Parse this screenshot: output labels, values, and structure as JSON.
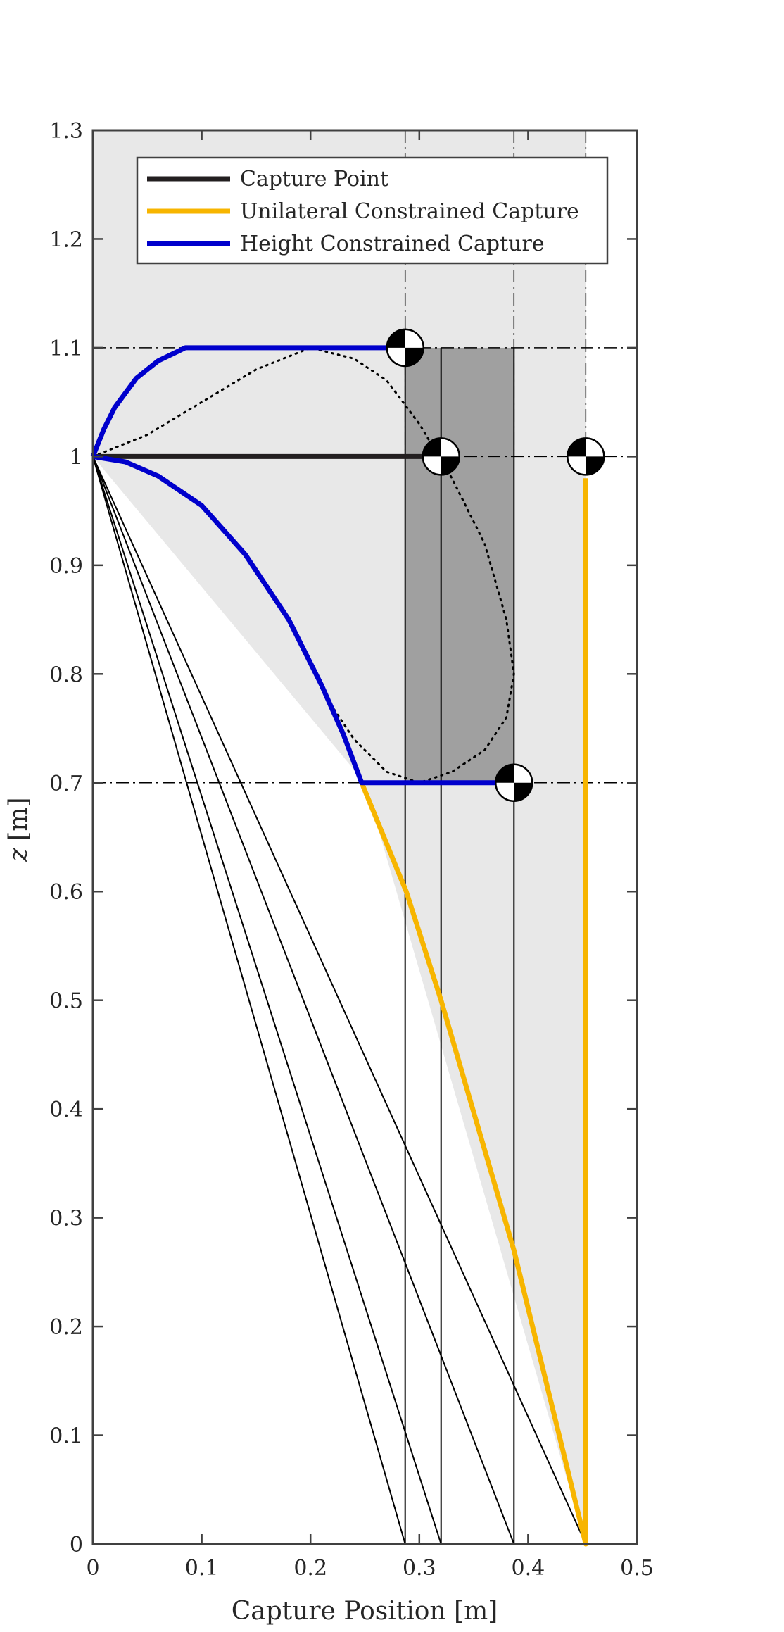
{
  "chart_data": {
    "type": "line",
    "xlabel": "Capture Position [m]",
    "ylabel_var": "z",
    "ylabel_unit": "[m]",
    "xlim": [
      0,
      0.5
    ],
    "ylim": [
      0,
      1.3
    ],
    "x_ticks": [
      "0",
      "0.1",
      "0.2",
      "0.3",
      "0.4",
      "0.5"
    ],
    "y_ticks": [
      "0",
      "0.1",
      "0.2",
      "0.3",
      "0.4",
      "0.5",
      "0.6",
      "0.7",
      "0.8",
      "0.9",
      "1",
      "1.1",
      "1.2",
      "1.3"
    ],
    "legend_position": "top",
    "colors": {
      "capture_point": "#231f20",
      "unilateral": "#f7b500",
      "height": "#0000cc",
      "light_region": "#e8e8e8",
      "dark_region": "#a0a0a0",
      "axes": "#404040"
    },
    "series": [
      {
        "name": "Capture Point",
        "x": [
          0,
          0.32
        ],
        "y": [
          1.0,
          1.0
        ]
      },
      {
        "name": "Unilateral Constrained Capture",
        "x": [
          0.247,
          0.288,
          0.32,
          0.387,
          0.453,
          0.453
        ],
        "y": [
          0.7,
          0.6,
          0.5,
          0.27,
          0.0,
          0.98
        ]
      },
      {
        "name": "Height Constrained Capture",
        "segments": [
          {
            "x": [
              0,
              0.01,
              0.02,
              0.04,
              0.06,
              0.085,
              0.287
            ],
            "y": [
              1.0,
              1.025,
              1.045,
              1.072,
              1.088,
              1.1,
              1.1
            ]
          },
          {
            "x": [
              0,
              0.03,
              0.06,
              0.1,
              0.14,
              0.18,
              0.21,
              0.23,
              0.247,
              0.387
            ],
            "y": [
              1.0,
              0.995,
              0.982,
              0.955,
              0.91,
              0.85,
              0.79,
              0.745,
              0.7,
              0.7
            ]
          }
        ]
      }
    ],
    "dotted_curve": {
      "x": [
        0,
        0.05,
        0.1,
        0.15,
        0.2,
        0.24,
        0.27,
        0.3,
        0.33,
        0.36,
        0.38,
        0.387,
        0.38,
        0.36,
        0.33,
        0.3,
        0.27,
        0.24,
        0.22
      ],
      "y": [
        1.0,
        1.02,
        1.05,
        1.08,
        1.1,
        1.09,
        1.07,
        1.03,
        0.98,
        0.92,
        0.85,
        0.8,
        0.76,
        0.73,
        0.71,
        0.7,
        0.71,
        0.74,
        0.77
      ]
    },
    "feasible_region": {
      "x": [
        0,
        0.453,
        0.453,
        0.25,
        0.0
      ],
      "y": [
        1.3,
        1.3,
        0.0,
        0.7,
        1.0
      ]
    },
    "shaded_rect": {
      "x": [
        0.287,
        0.387
      ],
      "y": [
        0.7,
        1.1
      ]
    },
    "rays_from": {
      "x": 0,
      "y": 1.0
    },
    "rays_to_x": [
      0.287,
      0.32,
      0.387,
      0.453
    ],
    "vertical_lines_x": [
      0.287,
      0.32,
      0.387
    ],
    "dashdot_vertical_x": [
      0.287,
      0.387,
      0.453
    ],
    "dashdot_horizontal_y": [
      1.1,
      1.0,
      0.7
    ],
    "com_markers": [
      {
        "x": 0.287,
        "y": 1.1
      },
      {
        "x": 0.32,
        "y": 1.0
      },
      {
        "x": 0.453,
        "y": 1.0
      },
      {
        "x": 0.387,
        "y": 0.7
      }
    ]
  }
}
